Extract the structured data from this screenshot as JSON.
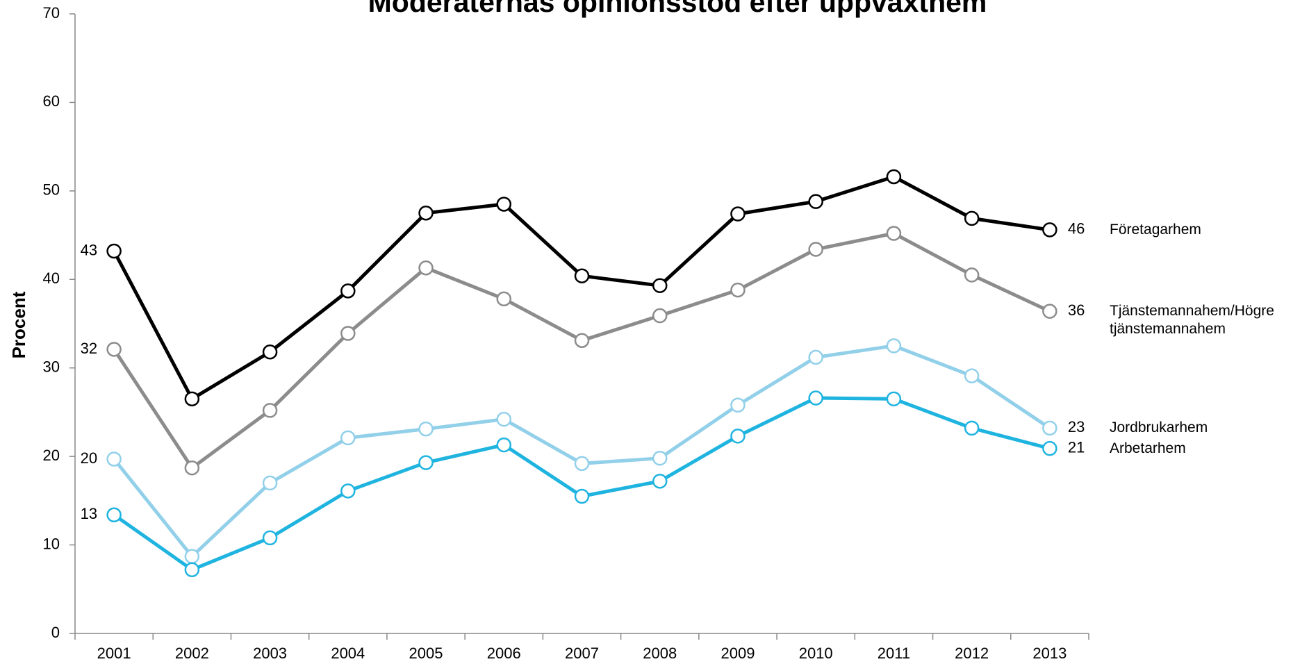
{
  "chart_data": {
    "type": "line",
    "title": "Moderaternas opinionsstöd efter uppväxthem",
    "y_label": "Procent",
    "categories": [
      "2001",
      "2002",
      "2003",
      "2004",
      "2005",
      "2006",
      "2007",
      "2008",
      "2009",
      "2010",
      "2011",
      "2012",
      "2013"
    ],
    "ylim": [
      0,
      70
    ],
    "yticks": [
      0,
      10,
      20,
      30,
      40,
      50,
      60,
      70
    ],
    "grid": false,
    "series": [
      {
        "name": "Företagarhem",
        "color": "#000000",
        "values": [
          43.2,
          26.5,
          31.8,
          38.7,
          47.5,
          48.5,
          40.4,
          39.3,
          47.4,
          48.8,
          51.6,
          46.9,
          45.6
        ],
        "value_labels": [
          "43",
          null,
          null,
          null,
          null,
          null,
          null,
          null,
          null,
          null,
          null,
          null,
          "46"
        ]
      },
      {
        "name": "Tjänstemannahem/Högre tjänstemannahem",
        "color": "#8c8c8c",
        "values": [
          32.1,
          18.7,
          25.2,
          33.9,
          41.3,
          37.8,
          33.1,
          35.9,
          38.8,
          43.4,
          45.2,
          40.5,
          36.4
        ],
        "value_labels": [
          "32",
          null,
          null,
          null,
          null,
          null,
          null,
          null,
          null,
          null,
          null,
          null,
          "36"
        ]
      },
      {
        "name": "Jordbrukarhem",
        "color": "#92d0ea",
        "values": [
          19.7,
          8.7,
          17.0,
          22.1,
          23.1,
          24.2,
          19.2,
          19.8,
          25.8,
          31.2,
          32.5,
          29.1,
          23.2
        ],
        "value_labels": [
          "20",
          null,
          null,
          null,
          null,
          null,
          null,
          null,
          null,
          null,
          null,
          null,
          "23"
        ]
      },
      {
        "name": "Arbetarhem",
        "color": "#1fb4e0",
        "values": [
          13.4,
          7.2,
          10.8,
          16.1,
          19.3,
          21.3,
          15.5,
          17.2,
          22.3,
          26.6,
          26.5,
          23.2,
          20.9
        ],
        "value_labels": [
          "13",
          null,
          null,
          null,
          null,
          null,
          null,
          null,
          null,
          null,
          null,
          null,
          "21"
        ]
      }
    ]
  }
}
